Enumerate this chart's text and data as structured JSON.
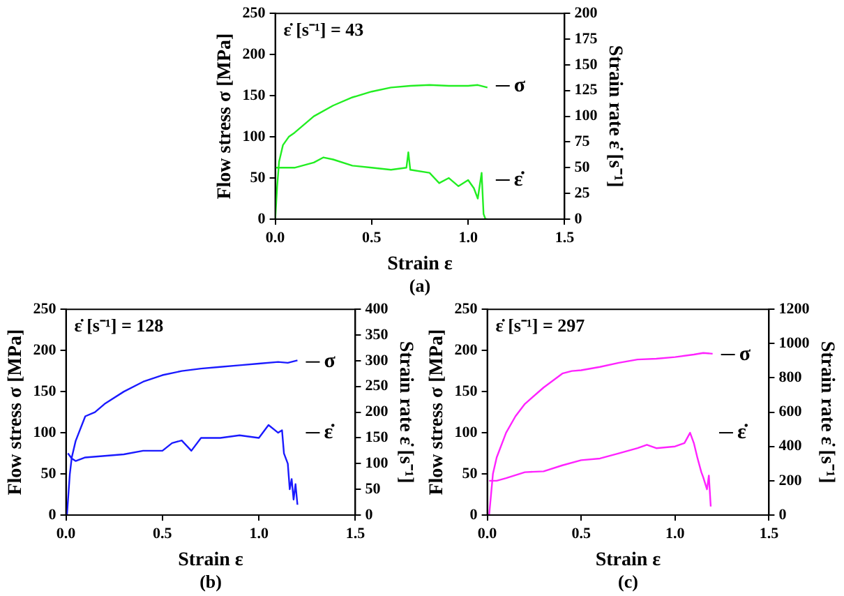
{
  "chart_data": [
    {
      "type": "line",
      "xlabel": "Strain ε",
      "ylabel": "Flow stress σ [MPa]",
      "y2label": "Strain rate ε̇ [s⁻¹]",
      "annotations": [
        "ε̇ [s⁻¹] = 43",
        "(a)"
      ],
      "legend": false,
      "grid": false,
      "marker": "none",
      "xlim": [
        0,
        1.5
      ],
      "xticks": [
        {
          "value": 0,
          "label": "0.0"
        },
        {
          "value": 0.5,
          "label": "0.5"
        },
        {
          "value": 1,
          "label": "1.0"
        },
        {
          "value": 1.5,
          "label": "1.5"
        }
      ],
      "ylim": [
        0,
        250
      ],
      "yticks": [
        0,
        50,
        100,
        150,
        200,
        250
      ],
      "y2lim": [
        0,
        200
      ],
      "y2ticks": [
        0,
        25,
        50,
        75,
        100,
        125,
        150,
        175,
        200
      ],
      "series": [
        {
          "name": "σ",
          "color": "#22ee22",
          "x": [
            0,
            0.01,
            0.02,
            0.04,
            0.07,
            0.1,
            0.15,
            0.2,
            0.3,
            0.4,
            0.5,
            0.6,
            0.7,
            0.8,
            0.9,
            1.0,
            1.05,
            1.1
          ],
          "values": [
            0,
            40,
            70,
            90,
            100,
            105,
            115,
            125,
            138,
            148,
            155,
            160,
            162,
            163,
            162,
            162,
            163,
            160
          ]
        },
        {
          "name": "ε̇",
          "axis": "y2",
          "color": "#22ee22",
          "x": [
            0,
            0.05,
            0.1,
            0.2,
            0.25,
            0.3,
            0.4,
            0.5,
            0.6,
            0.68,
            0.69,
            0.7,
            0.8,
            0.85,
            0.9,
            0.95,
            1.0,
            1.03,
            1.05,
            1.07,
            1.08,
            1.09,
            1.1
          ],
          "values": [
            50,
            50,
            50,
            55,
            60,
            58,
            52,
            50,
            48,
            50,
            65,
            48,
            45,
            35,
            40,
            32,
            38,
            30,
            20,
            45,
            5,
            0,
            0
          ]
        }
      ]
    },
    {
      "type": "line",
      "xlabel": "Strain ε",
      "ylabel": "Flow stress σ [MPa]",
      "y2label": "Strain rate ε̇ [s⁻¹]",
      "annotations": [
        "ε̇ [s⁻¹] = 128",
        "(b)"
      ],
      "legend": false,
      "grid": false,
      "marker": "none",
      "xlim": [
        0,
        1.5
      ],
      "xticks": [
        {
          "value": 0,
          "label": "0.0"
        },
        {
          "value": 0.5,
          "label": "0.5"
        },
        {
          "value": 1,
          "label": "1.0"
        },
        {
          "value": 1.5,
          "label": "1.5"
        }
      ],
      "ylim": [
        0,
        250
      ],
      "yticks": [
        0,
        50,
        100,
        150,
        200,
        250
      ],
      "y2lim": [
        0,
        400
      ],
      "y2ticks": [
        0,
        50,
        100,
        150,
        200,
        250,
        300,
        350,
        400
      ],
      "series": [
        {
          "name": "σ",
          "color": "#1a1aff",
          "x": [
            0.005,
            0.02,
            0.03,
            0.05,
            0.1,
            0.15,
            0.2,
            0.3,
            0.4,
            0.5,
            0.6,
            0.7,
            0.8,
            0.9,
            1.0,
            1.1,
            1.15,
            1.2
          ],
          "values": [
            0,
            50,
            70,
            90,
            120,
            125,
            135,
            150,
            162,
            170,
            175,
            178,
            180,
            182,
            184,
            186,
            185,
            188
          ]
        },
        {
          "name": "ε̇",
          "axis": "y2",
          "color": "#1a1aff",
          "x": [
            0.01,
            0.03,
            0.05,
            0.1,
            0.2,
            0.3,
            0.4,
            0.5,
            0.55,
            0.6,
            0.65,
            0.7,
            0.8,
            0.9,
            1.0,
            1.05,
            1.1,
            1.12,
            1.13,
            1.15,
            1.16,
            1.17,
            1.18,
            1.19,
            1.2
          ],
          "values": [
            120,
            110,
            105,
            112,
            115,
            118,
            125,
            125,
            140,
            145,
            125,
            150,
            150,
            155,
            150,
            175,
            160,
            165,
            120,
            100,
            50,
            70,
            30,
            60,
            20
          ]
        }
      ]
    },
    {
      "type": "line",
      "xlabel": "Strain ε",
      "ylabel": "Flow stress σ [MPa]",
      "y2label": "Strain rate ε̇ [s⁻¹]",
      "annotations": [
        "ε̇ [s⁻¹] = 297",
        "(c)"
      ],
      "legend": false,
      "grid": false,
      "marker": "none",
      "xlim": [
        0,
        1.5
      ],
      "xticks": [
        {
          "value": 0,
          "label": "0.0"
        },
        {
          "value": 0.5,
          "label": "0.5"
        },
        {
          "value": 1,
          "label": "1.0"
        },
        {
          "value": 1.5,
          "label": "1.5"
        }
      ],
      "ylim": [
        0,
        250
      ],
      "yticks": [
        0,
        50,
        100,
        150,
        200,
        250
      ],
      "y2lim": [
        0,
        1200
      ],
      "y2ticks": [
        0,
        200,
        400,
        600,
        800,
        1000,
        1200
      ],
      "series": [
        {
          "name": "σ",
          "color": "#ff22ff",
          "x": [
            0.01,
            0.03,
            0.05,
            0.1,
            0.15,
            0.2,
            0.3,
            0.4,
            0.45,
            0.5,
            0.6,
            0.7,
            0.8,
            0.9,
            1.0,
            1.1,
            1.15,
            1.2
          ],
          "values": [
            0,
            50,
            70,
            100,
            120,
            135,
            155,
            172,
            175,
            176,
            180,
            185,
            189,
            190,
            192,
            195,
            197,
            196
          ]
        },
        {
          "name": "ε̇",
          "axis": "y2",
          "color": "#ff22ff",
          "x": [
            0.01,
            0.05,
            0.1,
            0.2,
            0.3,
            0.4,
            0.5,
            0.6,
            0.7,
            0.8,
            0.85,
            0.9,
            1.0,
            1.05,
            1.08,
            1.1,
            1.12,
            1.14,
            1.15,
            1.17,
            1.18,
            1.19
          ],
          "values": [
            200,
            200,
            215,
            250,
            255,
            290,
            320,
            330,
            360,
            390,
            410,
            390,
            400,
            420,
            480,
            420,
            330,
            250,
            220,
            150,
            230,
            50
          ]
        }
      ]
    }
  ]
}
